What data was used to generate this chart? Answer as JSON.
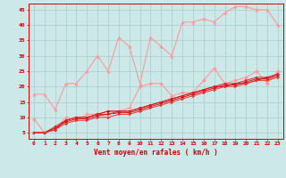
{
  "xlabel": "Vent moyen/en rafales ( km/h )",
  "background_color": "#cce8e8",
  "grid_color": "#aacccc",
  "x": [
    0,
    1,
    2,
    3,
    4,
    5,
    6,
    7,
    8,
    9,
    10,
    11,
    12,
    13,
    14,
    15,
    16,
    17,
    18,
    19,
    20,
    21,
    22,
    23
  ],
  "line_pink_upper": [
    17.5,
    17.5,
    12.5,
    21,
    21,
    25,
    30,
    25,
    36,
    33,
    21,
    36,
    33,
    30,
    41,
    41,
    42,
    41,
    44,
    46,
    46,
    45,
    45,
    40
  ],
  "line_pink_lower": [
    9.5,
    5,
    6,
    10,
    9,
    11,
    11,
    12,
    12,
    13,
    20,
    21,
    21,
    17,
    18,
    18,
    22,
    26,
    21,
    22,
    23,
    25,
    21,
    25
  ],
  "line_red_1": [
    5,
    5,
    6,
    9,
    10,
    10,
    11,
    12,
    12,
    12,
    13,
    14,
    15,
    16,
    17,
    18,
    19,
    20,
    20,
    21,
    21,
    22,
    23,
    24
  ],
  "line_red_2": [
    5,
    5,
    6.5,
    8.5,
    9.5,
    9.5,
    10.5,
    11,
    11.5,
    11.5,
    12.5,
    13.5,
    14.5,
    15.5,
    16.5,
    17.5,
    18.5,
    19.5,
    20.5,
    20.5,
    21.5,
    22.5,
    22.5,
    23.5
  ],
  "line_red_3": [
    5,
    5,
    7,
    9,
    10,
    10,
    11,
    11,
    12,
    12,
    13,
    14,
    15,
    16,
    17,
    18,
    19,
    20,
    21,
    21,
    22,
    23,
    23,
    24
  ],
  "line_red_4": [
    5,
    5,
    6,
    8,
    9,
    9,
    10,
    10,
    11,
    11,
    12,
    13,
    14,
    15,
    16,
    17,
    18,
    19,
    20,
    20,
    21,
    22,
    22,
    23
  ],
  "tick_x": [
    0,
    1,
    2,
    3,
    4,
    5,
    6,
    7,
    8,
    9,
    10,
    11,
    12,
    13,
    14,
    15,
    16,
    17,
    18,
    19,
    20,
    21,
    22,
    23
  ],
  "tick_y": [
    5,
    10,
    15,
    20,
    25,
    30,
    35,
    40,
    45
  ],
  "ylim": [
    3,
    47
  ],
  "xlim": [
    -0.5,
    23.5
  ]
}
